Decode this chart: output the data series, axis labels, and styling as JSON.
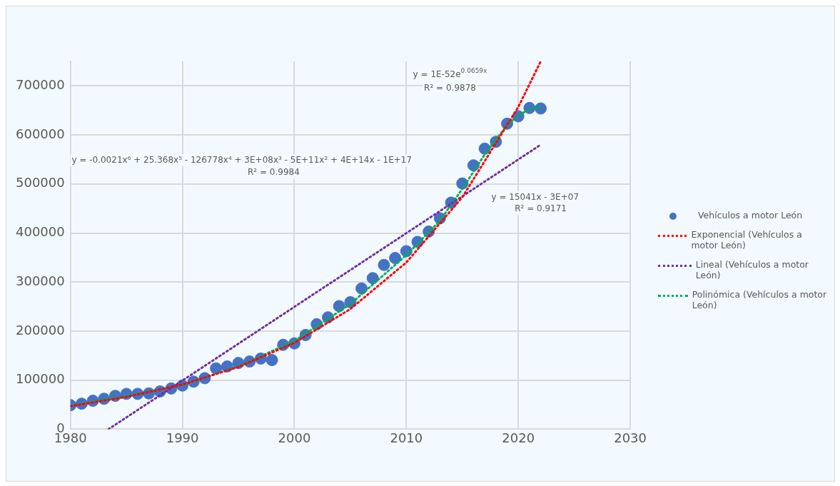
{
  "chart_data": {
    "type": "scatter",
    "x": [
      1980,
      1981,
      1982,
      1983,
      1984,
      1985,
      1986,
      1987,
      1988,
      1989,
      1990,
      1991,
      1992,
      1993,
      1994,
      1995,
      1996,
      1997,
      1998,
      1999,
      2000,
      2001,
      2002,
      2003,
      2004,
      2005,
      2006,
      2007,
      2008,
      2009,
      2010,
      2011,
      2012,
      2013,
      2014,
      2015,
      2016,
      2017,
      2018,
      2019,
      2020,
      2021,
      2022
    ],
    "xlim": [
      1980,
      2030
    ],
    "xticks": [
      1980,
      1990,
      2000,
      2010,
      2020,
      2030
    ],
    "ylim": [
      0,
      750000
    ],
    "yticks": [
      0,
      100000,
      200000,
      300000,
      400000,
      500000,
      600000,
      700000
    ],
    "grid": true,
    "legend": "right",
    "series": [
      {
        "name": "Vehículos a motor León",
        "marker": "circle",
        "color": "#4472c4",
        "values": [
          49000,
          52000,
          58000,
          62000,
          68000,
          72000,
          72000,
          73000,
          77000,
          83000,
          89000,
          97000,
          104000,
          124000,
          128000,
          135000,
          138000,
          144000,
          141000,
          172000,
          175000,
          192000,
          214000,
          228000,
          251000,
          259000,
          287000,
          308000,
          335000,
          349000,
          363000,
          382000,
          403000,
          430000,
          462000,
          501000,
          538000,
          572000,
          586000,
          623000,
          638000,
          655000,
          654000
        ]
      },
      {
        "name": "Exponencial (Vehículos a motor León)",
        "type": "line",
        "marker": "none",
        "line_style": "dotted",
        "color": "#ff0000",
        "x": [
          1980,
          1985,
          1990,
          1995,
          2000,
          2005,
          2010,
          2015,
          2020,
          2022
        ],
        "values": [
          47000,
          66000,
          91000,
          127000,
          176000,
          245000,
          340000,
          473000,
          657000,
          750000
        ]
      },
      {
        "name": "Lineal (Vehículos a motor León)",
        "type": "line",
        "marker": "none",
        "line_style": "dotted",
        "color": "#7030a0",
        "x": [
          1983.4,
          2022
        ],
        "values": [
          0,
          580000
        ]
      },
      {
        "name": "Polinómica (Vehículos a motor León)",
        "type": "line",
        "marker": "none",
        "line_style": "dotted",
        "color": "#00b050",
        "x": [
          1980,
          1985,
          1990,
          1995,
          2000,
          2005,
          2010,
          2013,
          2015,
          2017,
          2019,
          2020,
          2021,
          2022
        ],
        "values": [
          48000,
          68000,
          90000,
          128000,
          180000,
          255000,
          355000,
          425000,
          490000,
          560000,
          620000,
          640000,
          652000,
          658000
        ]
      }
    ],
    "annotations": [
      "y = 1E-52e$^{0.0659x}$",
      "R² = 0.9878",
      "y = -0.0021x⁶ + 25.368x⁵ - 126778x⁴ + 3E+08x³ - 5E+11x² + 4E+14x - 1E+17",
      "R² = 0.9984",
      "y = 15041x - 3E+07",
      "R² = 0.9171"
    ]
  }
}
